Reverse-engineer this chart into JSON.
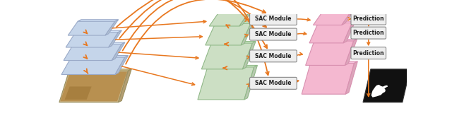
{
  "fig_width": 6.4,
  "fig_height": 1.67,
  "dpi": 100,
  "bg_color": "#ffffff",
  "blue_face": "#c5d5ea",
  "blue_edge": "#9aaac8",
  "green_face": "#ccdfc4",
  "green_edge": "#90b888",
  "pink_face": "#f4b8d0",
  "pink_edge": "#d890b0",
  "arrow_color": "#e87820",
  "box_face": "#eeeeee",
  "box_edge": "#888888",
  "text_color": "#222222",
  "sac_labels": [
    "SAC Module",
    "SAC Module",
    "SAC Module",
    "SAC Module"
  ],
  "pred_labels": [
    "Prediction",
    "Prediction",
    "Prediction"
  ]
}
